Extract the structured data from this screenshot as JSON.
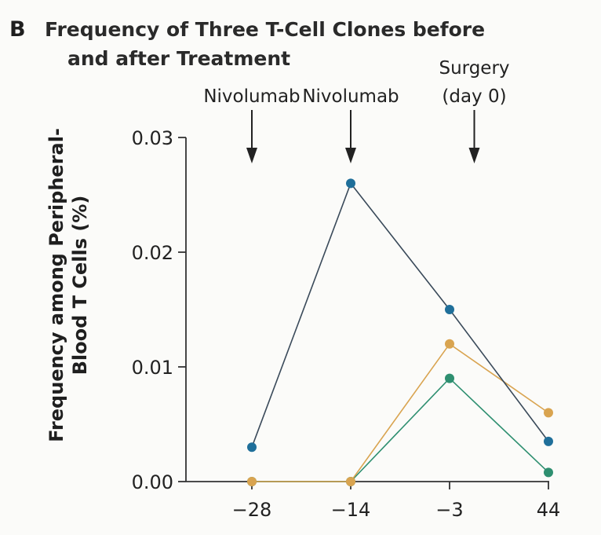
{
  "panel_letter": "B",
  "chart_data": {
    "type": "line",
    "title_lines": [
      "Frequency of Three T-Cell Clones before",
      "and after Treatment"
    ],
    "xlabel": "",
    "ylabel_lines": [
      "Frequency among Peripheral-",
      "Blood T Cells (%)"
    ],
    "categories": [
      "−28",
      "−14",
      "−3",
      "44"
    ],
    "y_ticks": [
      {
        "value": 0.0,
        "label": "0.00"
      },
      {
        "value": 0.01,
        "label": "0.01"
      },
      {
        "value": 0.02,
        "label": "0.02"
      },
      {
        "value": 0.03,
        "label": "0.03"
      }
    ],
    "ylim": [
      0,
      0.03
    ],
    "grid": false,
    "series": [
      {
        "color": "#1f6f9a",
        "values": [
          0.003,
          0.026,
          0.015,
          0.0035
        ]
      },
      {
        "color": "#d9a450",
        "values": [
          0.0,
          0.0,
          0.012,
          0.006
        ]
      },
      {
        "color": "#2e8f70",
        "values": [
          0.0,
          0.0,
          0.009,
          0.0008
        ]
      }
    ],
    "line_color": "#4a4a4a",
    "annotations": [
      {
        "lines": [
          "Nivolumab"
        ],
        "category_index": 0,
        "offset": 0
      },
      {
        "lines": [
          "Nivolumab"
        ],
        "category_index": 1,
        "offset": 0
      },
      {
        "lines": [
          "Surgery",
          "(day 0)"
        ],
        "category_index": 2,
        "offset": 0.25
      }
    ]
  }
}
